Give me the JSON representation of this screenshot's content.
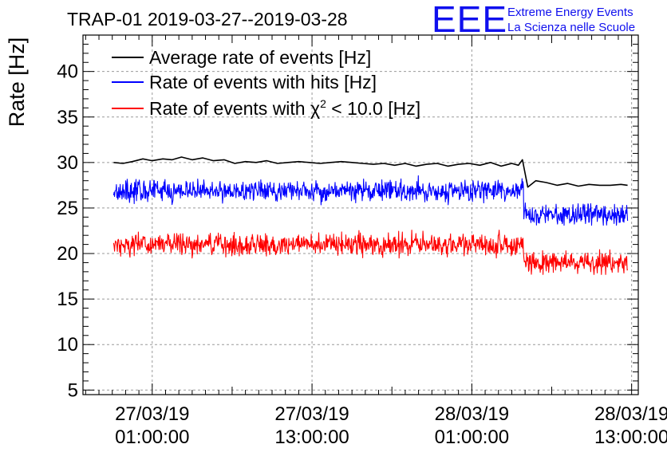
{
  "header": {
    "title": "TRAP-01 2019-03-27--2019-03-28",
    "logo_letters": "EEE",
    "logo_line1": "Extreme Energy Events",
    "logo_line2": "La Scienza nelle Scuole"
  },
  "colors": {
    "average": "#000000",
    "hits": "#0000ff",
    "chi2": "#ff0000",
    "logo": "#1010ee",
    "grid": "#9a9a9a"
  },
  "chart_data": {
    "type": "line",
    "title": "TRAP-01 2019-03-27--2019-03-28",
    "xlabel": "",
    "ylabel": "Rate [Hz]",
    "ylim": [
      4.5,
      44
    ],
    "yticks": [
      5,
      10,
      15,
      20,
      25,
      30,
      35,
      40
    ],
    "xlim_hours": [
      -4.2,
      37.5
    ],
    "x_unit": "hours since 27/03/19 00:00:00",
    "xticks": [
      {
        "hour": 1,
        "date": "27/03/19",
        "time": "01:00:00"
      },
      {
        "hour": 13,
        "date": "27/03/19",
        "time": "13:00:00"
      },
      {
        "hour": 25,
        "date": "28/03/19",
        "time": "01:00:00"
      },
      {
        "hour": 37,
        "date": "28/03/19",
        "time": "13:00:00"
      }
    ],
    "grid": true,
    "legend_position": "top-left",
    "legend": {
      "average": "Average rate of events [Hz]",
      "hits": "Rate of events with hits [Hz]",
      "chi2_prefix": "Rate of events with ",
      "chi2_symbol": "χ",
      "chi2_exponent": "2",
      "chi2_suffix": " < 10.0 [Hz]"
    },
    "series": [
      {
        "name": "Average rate of events [Hz]",
        "style": "line",
        "x": [
          -1.9,
          -1.2,
          -0.5,
          0.3,
          1.0,
          1.8,
          2.5,
          3.2,
          4.0,
          4.8,
          5.6,
          6.4,
          7.2,
          8.0,
          8.8,
          9.6,
          10.4,
          11.2,
          12.0,
          12.8,
          13.6,
          14.4,
          15.2,
          16.0,
          16.8,
          17.6,
          18.4,
          19.2,
          20.0,
          20.8,
          21.6,
          22.4,
          23.2,
          24.0,
          24.8,
          25.6,
          26.4,
          27.2,
          28.0,
          28.5,
          28.8,
          29.2,
          29.8,
          30.6,
          31.4,
          32.2,
          33.0,
          33.8,
          34.6,
          35.4,
          36.2,
          36.7
        ],
        "values": [
          30.0,
          29.9,
          30.1,
          30.4,
          30.2,
          30.4,
          30.3,
          30.6,
          30.3,
          30.5,
          30.2,
          30.3,
          29.9,
          30.1,
          30.0,
          30.2,
          29.9,
          30.0,
          30.1,
          30.0,
          29.9,
          30.0,
          30.1,
          30.0,
          29.9,
          29.8,
          29.9,
          29.7,
          29.9,
          29.6,
          29.8,
          29.9,
          29.6,
          29.8,
          29.9,
          29.7,
          30.0,
          29.6,
          29.9,
          29.7,
          30.3,
          27.3,
          28.0,
          27.8,
          27.5,
          27.7,
          27.4,
          27.6,
          27.5,
          27.5,
          27.6,
          27.5
        ]
      },
      {
        "name": "Rate of events with hits [Hz]",
        "style": "noisy",
        "x_start": -1.9,
        "x_end": 36.7,
        "step_at": 28.9,
        "mean_before": 26.9,
        "mean_after": 24.3,
        "amplitude": 1.3,
        "min": 23.1,
        "max": 29.0
      },
      {
        "name": "Rate of events with χ2 < 10.0 [Hz]",
        "style": "noisy",
        "x_start": -1.9,
        "x_end": 36.7,
        "step_at": 28.9,
        "mean_before": 21.0,
        "mean_after": 19.0,
        "amplitude": 1.3,
        "min": 17.7,
        "max": 23.4
      }
    ]
  }
}
